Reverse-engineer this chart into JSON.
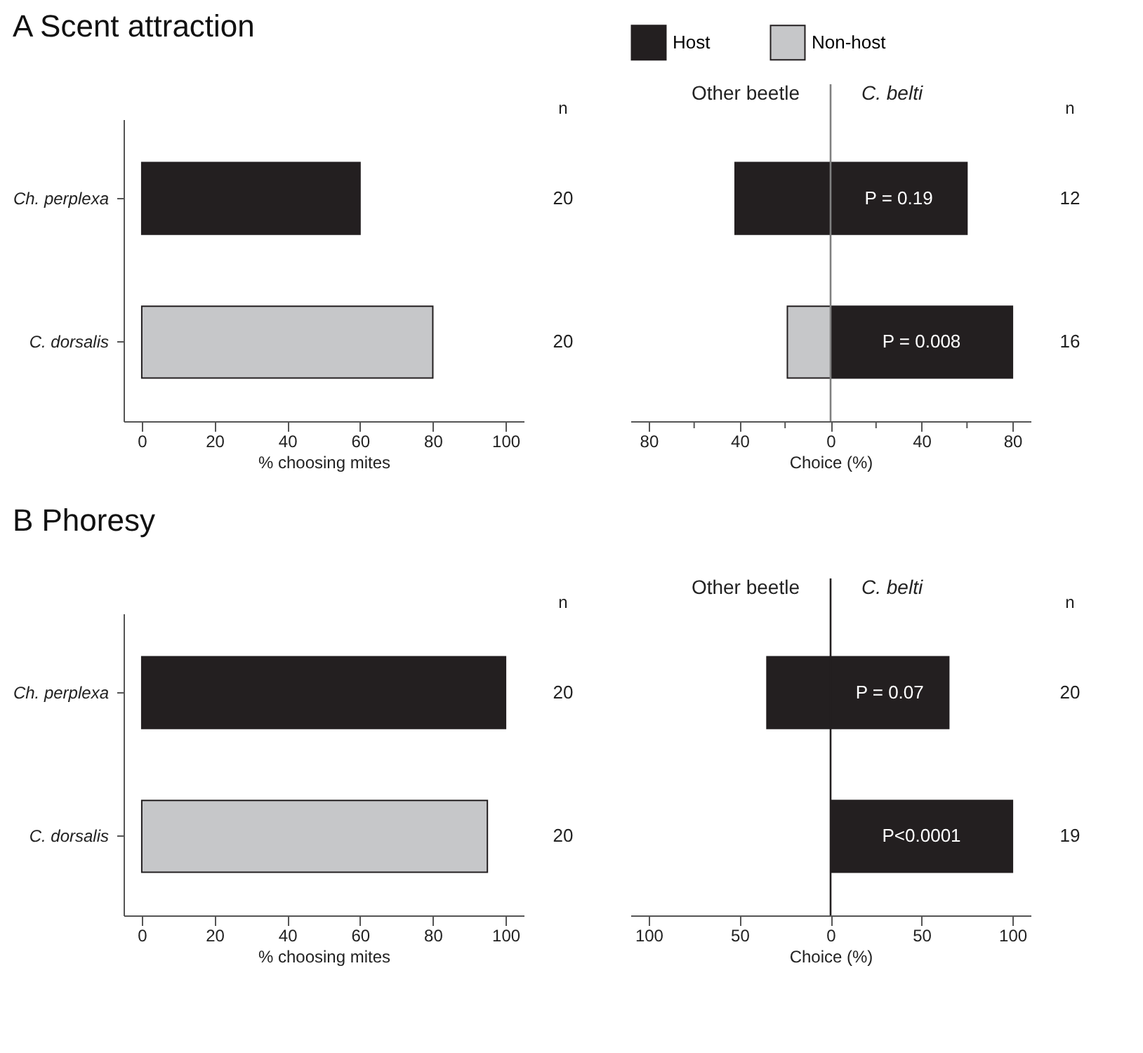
{
  "chart_data": [
    {
      "type": "bar",
      "orientation": "horizontal",
      "title": "A Scent attraction",
      "xlabel": "% choosing mites",
      "categories": [
        "Ch. perplexa",
        "C. dorsalis"
      ],
      "values": [
        60,
        80
      ],
      "colors": [
        "#231f20",
        "#c6c7c9"
      ],
      "xlim": [
        -5,
        105
      ],
      "xticks": [
        0,
        20,
        40,
        60,
        80,
        100
      ],
      "grid": false,
      "legend": false,
      "annotations": [
        "n",
        "20",
        "20"
      ]
    },
    {
      "type": "bar",
      "orientation": "horizontal",
      "stacked": true,
      "xlabel": "Choice (%)",
      "categories": [
        null,
        null
      ],
      "series": [
        {
          "name": "Host",
          "color": "#231f20",
          "values": [
            60,
            80
          ]
        },
        {
          "name": "Non-host",
          "color": "#c6c7c9",
          "values": [
            null,
            -19
          ]
        },
        {
          "color": "#231f20",
          "values": [
            -42,
            null
          ]
        }
      ],
      "xlim": [
        -88,
        88
      ],
      "xticks": [
        {
          "value": -80,
          "label": "80"
        },
        {
          "value": -60,
          "label": null
        },
        {
          "value": -40,
          "label": "40"
        },
        {
          "value": -20,
          "label": null
        },
        0,
        {
          "value": 20,
          "label": null
        },
        40,
        {
          "value": 60,
          "label": null
        },
        80
      ],
      "tick_labels": "x",
      "grid": false,
      "legend": "top",
      "ref_lines": [
        {
          "axis": "x",
          "value": 0,
          "color": "#808080"
        }
      ],
      "annotations": [
        "Other beetle",
        "C. belti",
        "n",
        "12",
        "16",
        "P = 0.19",
        "P = 0.008"
      ]
    },
    {
      "type": "bar",
      "orientation": "horizontal",
      "title": "B Phoresy",
      "xlabel": "% choosing mites",
      "categories": [
        "Ch. perplexa",
        "C. dorsalis"
      ],
      "values": [
        100,
        95
      ],
      "colors": [
        "#231f20",
        "#c6c7c9"
      ],
      "xlim": [
        -5,
        105
      ],
      "xticks": [
        0,
        20,
        40,
        60,
        80,
        100
      ],
      "grid": false,
      "legend": false,
      "annotations": [
        "n",
        "20",
        "20"
      ]
    },
    {
      "type": "bar",
      "orientation": "horizontal",
      "stacked": true,
      "xlabel": "Choice (%)",
      "categories": [
        null,
        null
      ],
      "series": [
        {
          "color": "#231f20",
          "values": [
            65,
            100
          ]
        },
        {
          "color": "#231f20",
          "values": [
            -35,
            null
          ]
        }
      ],
      "xlim": [
        -110,
        110
      ],
      "xticks": [
        {
          "value": -100,
          "label": "100"
        },
        {
          "value": -50,
          "label": "50"
        },
        0,
        50,
        100
      ],
      "tick_labels": "x",
      "grid": false,
      "legend": false,
      "ref_lines": [
        {
          "axis": "x",
          "value": 0,
          "color": "#231f20"
        }
      ],
      "annotations": [
        "Other beetle",
        "C. belti",
        "n",
        "20",
        "19",
        "P = 0.07",
        "P<0.0001"
      ]
    }
  ]
}
